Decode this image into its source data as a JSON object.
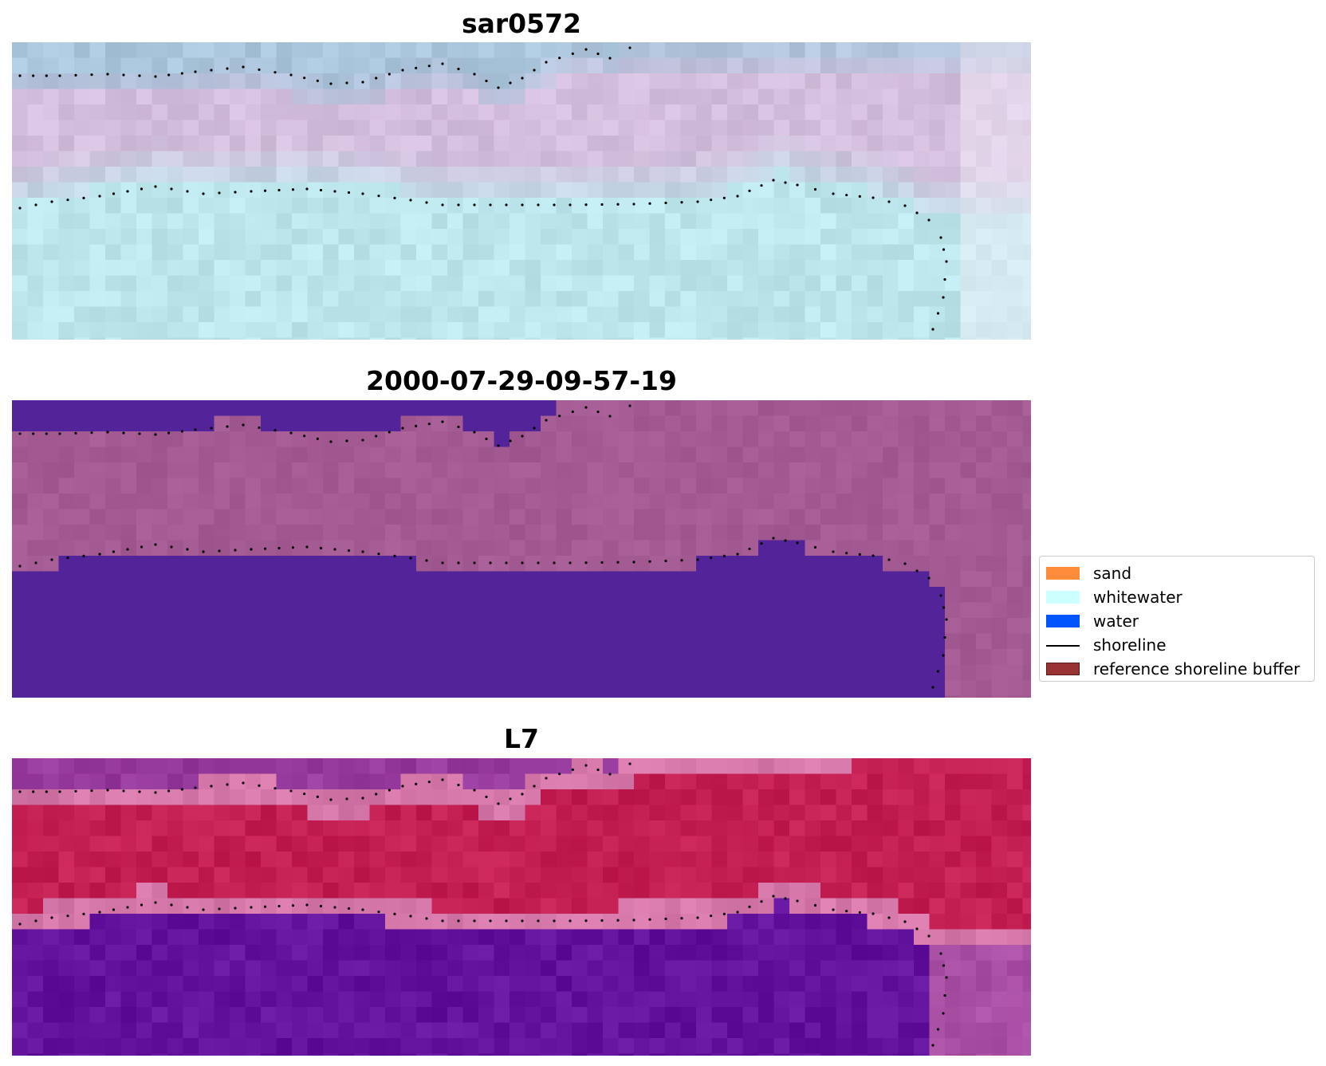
{
  "panels": [
    {
      "title": "sar0572",
      "style": "sar"
    },
    {
      "title": "2000-07-29-09-57-19",
      "style": "classified"
    },
    {
      "title": "L7",
      "style": "l7"
    }
  ],
  "legend": {
    "items": [
      {
        "label": "sand",
        "color": "#ff8c3a",
        "kind": "patch"
      },
      {
        "label": "whitewater",
        "color": "#ccffff",
        "kind": "patch"
      },
      {
        "label": "water",
        "color": "#0055ff",
        "kind": "patch"
      },
      {
        "label": "shoreline",
        "color": "#000000",
        "kind": "line"
      },
      {
        "label": "reference shoreline buffer",
        "color": "#993333",
        "kind": "patch"
      }
    ]
  },
  "colors": {
    "sar_upper": "#a9c6dc",
    "sar_middle": "#d4bedd",
    "sar_lower": "#bde6ec",
    "classified_land": "#a45a92",
    "classified_water": "#53239a",
    "l7_upper": "#973a9e",
    "l7_middle": "#c41f52",
    "l7_lower": "#62129c",
    "shoreline": "#000000"
  }
}
